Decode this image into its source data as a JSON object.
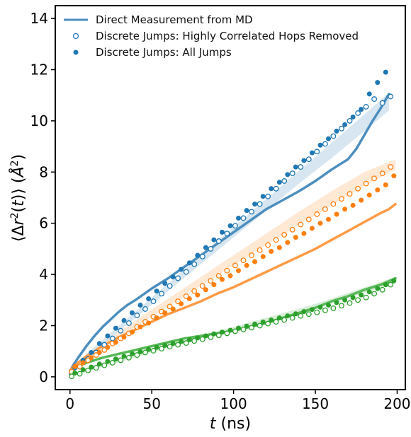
{
  "chart_data": {
    "type": "scatter",
    "xlabel": "t (ns)",
    "ylabel": "⟨Δr²(t)⟩ (Å²)",
    "xlim": [
      -9,
      205
    ],
    "ylim": [
      -0.5,
      14.5
    ],
    "x_ticks": [
      "0",
      "50",
      "100",
      "150",
      "200"
    ],
    "y_ticks": [
      "0",
      "2",
      "4",
      "6",
      "8",
      "10",
      "12",
      "14"
    ],
    "grid": false,
    "legend": {
      "placement": "top-left",
      "entries": [
        {
          "label": "Direct Measurement from MD",
          "marker": "line",
          "color": "#4c8ebf"
        },
        {
          "label": "Discrete Jumps: Highly Correlated Hops Removed",
          "marker": "open-circle",
          "color": "#1f77b4"
        },
        {
          "label": "Discrete Jumps: All Jumps",
          "marker": "filled-circle",
          "color": "#1f77b4"
        }
      ]
    },
    "groups": [
      {
        "color": "#1f77b4",
        "line_color": "#4c8ebf",
        "md_curve": {
          "x": [
            0,
            2,
            5,
            10,
            15,
            20,
            25,
            30,
            35,
            40,
            50,
            60,
            70,
            80,
            90,
            100,
            110,
            120,
            130,
            140,
            150,
            160,
            165,
            170,
            175,
            180,
            185,
            190,
            195
          ],
          "y": [
            0.2,
            0.45,
            0.75,
            1.2,
            1.6,
            1.95,
            2.25,
            2.55,
            2.8,
            3.0,
            3.45,
            3.85,
            4.3,
            4.75,
            5.2,
            5.65,
            6.1,
            6.55,
            6.9,
            7.25,
            7.65,
            8.1,
            8.3,
            8.5,
            8.9,
            9.45,
            10.0,
            10.5,
            11.05
          ]
        },
        "band": {
          "x": [
            0,
            20,
            40,
            60,
            80,
            100,
            120,
            140,
            160,
            180,
            195
          ],
          "lower": [
            0.2,
            1.25,
            2.3,
            3.35,
            4.4,
            5.45,
            6.5,
            7.55,
            8.55,
            9.6,
            10.4
          ],
          "upper": [
            0.3,
            1.45,
            2.55,
            3.65,
            4.75,
            5.85,
            6.95,
            8.05,
            9.15,
            10.25,
            11.1
          ]
        },
        "open_points": {
          "x": [
            1,
            6,
            11,
            16,
            21,
            26,
            31,
            36,
            41,
            46,
            51,
            56,
            61,
            66,
            71,
            76,
            81,
            86,
            91,
            96,
            101,
            106,
            111,
            116,
            121,
            126,
            131,
            136,
            141,
            146,
            151,
            156,
            161,
            166,
            171,
            176,
            181,
            186,
            191,
            196
          ],
          "y": [
            0.1,
            0.4,
            0.7,
            0.95,
            1.25,
            1.5,
            1.8,
            2.1,
            2.4,
            2.65,
            2.95,
            3.25,
            3.55,
            3.85,
            4.1,
            4.4,
            4.7,
            5.0,
            5.3,
            5.6,
            5.9,
            6.2,
            6.45,
            6.75,
            7.05,
            7.35,
            7.65,
            7.95,
            8.2,
            8.5,
            8.8,
            9.1,
            9.4,
            9.7,
            10.0,
            10.3,
            10.55,
            10.85,
            10.7,
            10.95
          ]
        },
        "filled_points": {
          "x": [
            3,
            8,
            13,
            18,
            23,
            28,
            33,
            38,
            43,
            48,
            53,
            58,
            63,
            68,
            73,
            78,
            83,
            88,
            93,
            98,
            103,
            108,
            113,
            118,
            123,
            128,
            133,
            138,
            143,
            148,
            153,
            158,
            163,
            168,
            173,
            178,
            183,
            188,
            193
          ],
          "y": [
            0.35,
            0.65,
            0.95,
            1.3,
            1.6,
            1.9,
            2.2,
            2.5,
            2.8,
            3.05,
            3.35,
            3.65,
            3.9,
            4.2,
            4.45,
            4.75,
            5.05,
            5.35,
            5.65,
            5.9,
            6.2,
            6.5,
            6.75,
            7.05,
            7.35,
            7.6,
            7.9,
            8.2,
            8.45,
            8.75,
            9.05,
            9.3,
            9.6,
            9.85,
            10.15,
            10.45,
            11.05,
            11.5,
            11.9
          ]
        }
      },
      {
        "color": "#ff7f0e",
        "line_color": "#ff9a45",
        "md_curve": {
          "x": [
            0,
            5,
            10,
            20,
            30,
            40,
            50,
            60,
            70,
            80,
            90,
            100,
            110,
            120,
            130,
            140,
            150,
            160,
            170,
            180,
            190,
            195,
            199
          ],
          "y": [
            0.25,
            0.55,
            0.8,
            1.2,
            1.55,
            1.85,
            2.15,
            2.45,
            2.7,
            2.95,
            3.25,
            3.5,
            3.8,
            4.1,
            4.4,
            4.7,
            5.0,
            5.35,
            5.7,
            6.05,
            6.4,
            6.55,
            6.75
          ]
        },
        "band": {
          "x": [
            0,
            20,
            40,
            60,
            80,
            100,
            120,
            140,
            160,
            180,
            199
          ],
          "lower": [
            0.3,
            1.1,
            1.95,
            2.75,
            3.55,
            4.35,
            5.15,
            5.95,
            6.7,
            7.45,
            8.1
          ],
          "upper": [
            0.4,
            1.3,
            2.2,
            3.05,
            3.9,
            4.75,
            5.6,
            6.45,
            7.25,
            8.0,
            8.5
          ]
        },
        "open_points": {
          "x": [
            1,
            6,
            11,
            16,
            21,
            26,
            31,
            36,
            41,
            46,
            51,
            56,
            61,
            66,
            71,
            76,
            81,
            86,
            91,
            96,
            101,
            106,
            111,
            116,
            121,
            126,
            131,
            136,
            141,
            146,
            151,
            156,
            161,
            166,
            171,
            176,
            181,
            186,
            191,
            196
          ],
          "y": [
            0.2,
            0.4,
            0.65,
            0.85,
            1.05,
            1.3,
            1.5,
            1.7,
            1.95,
            2.15,
            2.35,
            2.55,
            2.75,
            2.95,
            3.15,
            3.35,
            3.55,
            3.75,
            3.95,
            4.15,
            4.35,
            4.55,
            4.75,
            4.95,
            5.15,
            5.35,
            5.55,
            5.75,
            5.95,
            6.15,
            6.35,
            6.55,
            6.75,
            6.95,
            7.15,
            7.35,
            7.55,
            7.75,
            7.95,
            8.2
          ]
        },
        "filled_points": {
          "x": [
            3,
            8,
            13,
            18,
            23,
            28,
            33,
            38,
            43,
            48,
            53,
            58,
            63,
            68,
            73,
            78,
            83,
            88,
            93,
            98,
            103,
            108,
            113,
            118,
            123,
            128,
            133,
            138,
            143,
            148,
            153,
            158,
            163,
            168,
            173,
            178,
            183,
            188,
            193,
            198
          ],
          "y": [
            0.4,
            0.55,
            0.75,
            0.95,
            1.15,
            1.35,
            1.55,
            1.75,
            1.95,
            2.1,
            2.3,
            2.5,
            2.65,
            2.85,
            3.05,
            3.2,
            3.4,
            3.6,
            3.8,
            3.95,
            4.15,
            4.35,
            4.5,
            4.7,
            4.9,
            5.05,
            5.25,
            5.45,
            5.6,
            5.8,
            6.0,
            6.15,
            6.35,
            6.55,
            6.7,
            6.9,
            7.1,
            7.3,
            7.5,
            7.85
          ]
        }
      },
      {
        "color": "#2ca02c",
        "line_color": "#57b857",
        "md_curve": {
          "x": [
            0,
            5,
            10,
            20,
            30,
            40,
            50,
            60,
            70,
            80,
            90,
            100,
            110,
            120,
            130,
            140,
            150,
            160,
            170,
            180,
            190,
            199
          ],
          "y": [
            0.2,
            0.4,
            0.55,
            0.75,
            0.9,
            1.05,
            1.2,
            1.35,
            1.5,
            1.6,
            1.7,
            1.8,
            1.95,
            2.1,
            2.3,
            2.5,
            2.7,
            2.95,
            3.15,
            3.4,
            3.6,
            3.85
          ]
        },
        "band": {
          "x": [
            0,
            50,
            100,
            150,
            199
          ],
          "lower": [
            0.0,
            0.95,
            1.8,
            2.7,
            3.65
          ],
          "upper": [
            0.1,
            1.05,
            1.95,
            2.85,
            3.9
          ]
        },
        "open_points": {
          "x": [
            1,
            6,
            11,
            16,
            21,
            26,
            31,
            36,
            41,
            46,
            51,
            56,
            61,
            66,
            71,
            76,
            81,
            86,
            91,
            96,
            101,
            106,
            111,
            116,
            121,
            126,
            131,
            136,
            141,
            146,
            151,
            156,
            161,
            166,
            171,
            176,
            181,
            186,
            191,
            196
          ],
          "y": [
            0.02,
            0.12,
            0.25,
            0.35,
            0.45,
            0.55,
            0.65,
            0.75,
            0.85,
            0.95,
            1.02,
            1.1,
            1.18,
            1.25,
            1.32,
            1.4,
            1.47,
            1.55,
            1.62,
            1.7,
            1.78,
            1.85,
            1.92,
            2.0,
            2.08,
            2.15,
            2.22,
            2.3,
            2.38,
            2.45,
            2.52,
            2.6,
            2.68,
            2.78,
            2.88,
            3.0,
            3.1,
            3.25,
            3.4,
            3.6
          ]
        },
        "filled_points": {
          "x": [
            3,
            8,
            13,
            18,
            23,
            28,
            33,
            38,
            43,
            48,
            53,
            58,
            63,
            68,
            73,
            78,
            83,
            88,
            93,
            98,
            103,
            108,
            113,
            118,
            123,
            128,
            133,
            138,
            143,
            148,
            153,
            158,
            163,
            168,
            173,
            178,
            183,
            188,
            193,
            198
          ],
          "y": [
            0.15,
            0.28,
            0.38,
            0.5,
            0.6,
            0.7,
            0.8,
            0.9,
            0.98,
            1.07,
            1.15,
            1.23,
            1.3,
            1.38,
            1.45,
            1.52,
            1.6,
            1.68,
            1.75,
            1.82,
            1.9,
            1.98,
            2.06,
            2.14,
            2.22,
            2.3,
            2.38,
            2.46,
            2.55,
            2.63,
            2.72,
            2.8,
            2.9,
            3.0,
            3.1,
            3.2,
            3.32,
            3.45,
            3.6,
            3.75
          ]
        }
      }
    ]
  }
}
